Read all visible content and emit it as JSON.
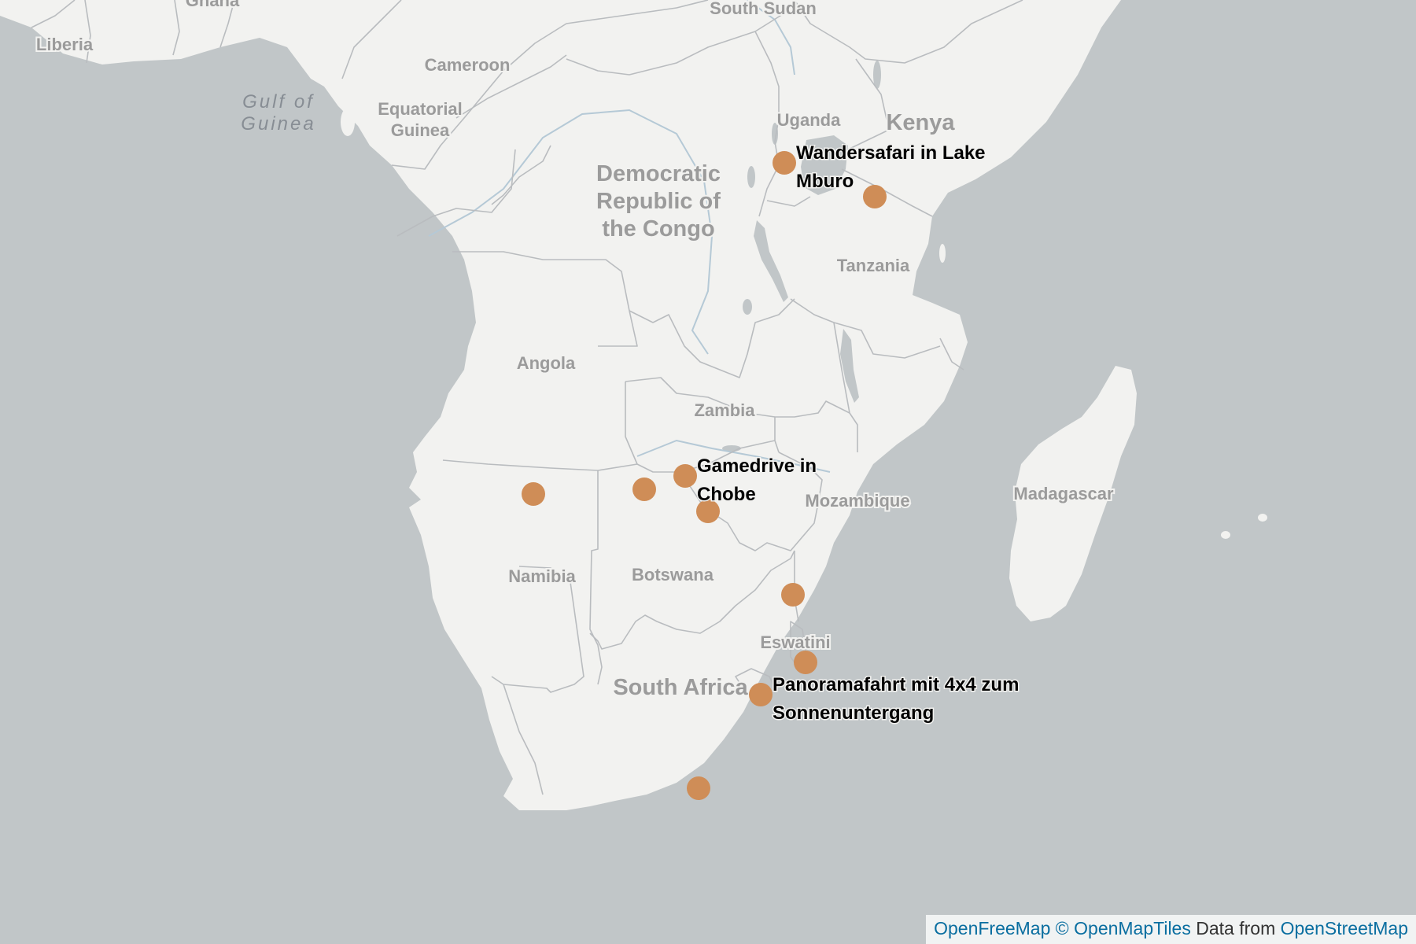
{
  "colors": {
    "water": "#c1c6c8",
    "land": "#f2f2f0",
    "border": "#b9bcbf",
    "river": "#b5c9d6",
    "lake": "#c1c6c8",
    "country_label": "#9b9b9b",
    "sea_label": "#878d94",
    "marker": "#cf8d57",
    "marker_label": "#000000"
  },
  "countries": [
    {
      "id": "ghana",
      "name": "Ghana"
    },
    {
      "id": "liberia",
      "name": "Liberia"
    },
    {
      "id": "south-sudan",
      "name": "South Sudan"
    },
    {
      "id": "cameroon",
      "name": "Cameroon"
    },
    {
      "id": "equatorial-guinea",
      "lines": [
        "Equatorial",
        "Guinea"
      ]
    },
    {
      "id": "uganda",
      "name": "Uganda"
    },
    {
      "id": "kenya",
      "name": "Kenya"
    },
    {
      "id": "drc",
      "lines": [
        "Democratic",
        "Republic of",
        "the Congo"
      ]
    },
    {
      "id": "tanzania",
      "name": "Tanzania"
    },
    {
      "id": "angola",
      "name": "Angola"
    },
    {
      "id": "zambia",
      "name": "Zambia"
    },
    {
      "id": "mozambique",
      "name": "Mozambique"
    },
    {
      "id": "madagascar",
      "name": "Madagascar"
    },
    {
      "id": "namibia",
      "name": "Namibia"
    },
    {
      "id": "botswana",
      "name": "Botswana"
    },
    {
      "id": "eswatini",
      "name": "Eswatini"
    },
    {
      "id": "south-africa",
      "name": "South Africa"
    }
  ],
  "seas": [
    {
      "id": "gulf-of-guinea",
      "lines": [
        "Gulf of",
        "Guinea"
      ]
    }
  ],
  "markers": [
    {
      "id": "lake-mburo",
      "lines": [
        "Wandersafari in Lake",
        "Mburo"
      ]
    },
    {
      "id": "serengeti",
      "lines": []
    },
    {
      "id": "etosha",
      "lines": []
    },
    {
      "id": "caprivi",
      "lines": []
    },
    {
      "id": "chobe",
      "lines": [
        "Gamedrive in",
        "Chobe"
      ]
    },
    {
      "id": "victoria-falls",
      "lines": []
    },
    {
      "id": "kruger",
      "lines": []
    },
    {
      "id": "hluhluwe",
      "lines": []
    },
    {
      "id": "drakensberg",
      "lines": [
        "Panoramafahrt mit 4x4 zum",
        "Sonnenuntergang"
      ]
    },
    {
      "id": "garden-route",
      "lines": []
    }
  ],
  "attribution": {
    "openfreemap": "OpenFreeMap",
    "openmaptiles": "© OpenMapTiles",
    "data_from": "Data from",
    "openstreetmap": "OpenStreetMap"
  }
}
